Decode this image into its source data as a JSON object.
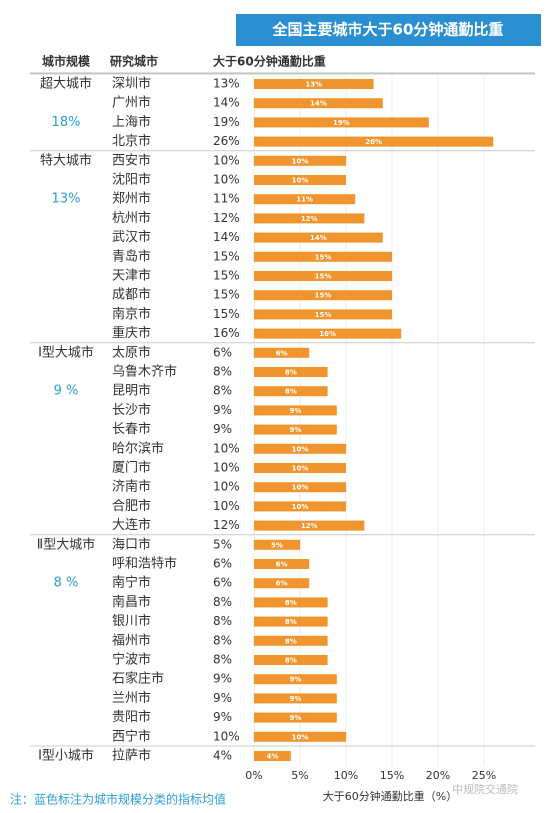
{
  "chart_data": {
    "type": "bar",
    "title": "全国主要城市大于60分钟通勤比重",
    "column_headers": [
      "城市规模",
      "研究城市",
      "大于60分钟通勤比重"
    ],
    "color": "#f0952e",
    "xlim": [
      0,
      30
    ],
    "xticks": [
      {
        "value": 0,
        "label": "0%"
      },
      {
        "value": 5,
        "label": "5%"
      },
      {
        "value": 10,
        "label": "10%"
      },
      {
        "value": 15,
        "label": "15%"
      },
      {
        "value": 20,
        "label": "20%"
      },
      {
        "value": 25,
        "label": "25%"
      }
    ],
    "xlabel": "大于60分钟通勤比重（%）",
    "groups": [
      {
        "name": "超大城市",
        "average": "18%",
        "categories": [
          "深圳市",
          "广州市",
          "上海市",
          "北京市"
        ],
        "values": [
          13,
          14,
          19,
          26
        ],
        "value_labels": [
          "13%",
          "14%",
          "19%",
          "26%"
        ]
      },
      {
        "name": "特大城市",
        "average": "13%",
        "categories": [
          "西安市",
          "沈阳市",
          "郑州市",
          "杭州市",
          "武汉市",
          "青岛市",
          "天津市",
          "成都市",
          "南京市",
          "重庆市"
        ],
        "values": [
          10,
          10,
          11,
          12,
          14,
          15,
          15,
          15,
          15,
          16
        ],
        "value_labels": [
          "10%",
          "10%",
          "11%",
          "12%",
          "14%",
          "15%",
          "15%",
          "15%",
          "15%",
          "16%"
        ]
      },
      {
        "name": "Ⅰ型大城市",
        "average": "9 %",
        "categories": [
          "太原市",
          "乌鲁木齐市",
          "昆明市",
          "长沙市",
          "长春市",
          "哈尔滨市",
          "厦门市",
          "济南市",
          "合肥市",
          "大连市"
        ],
        "values": [
          6,
          8,
          8,
          9,
          9,
          10,
          10,
          10,
          10,
          12
        ],
        "value_labels": [
          "6%",
          "8%",
          "8%",
          "9%",
          "9%",
          "10%",
          "10%",
          "10%",
          "10%",
          "12%"
        ]
      },
      {
        "name": "Ⅱ型大城市",
        "average": "8 %",
        "categories": [
          "海口市",
          "呼和浩特市",
          "南宁市",
          "南昌市",
          "银川市",
          "福州市",
          "宁波市",
          "石家庄市",
          "兰州市",
          "贵阳市",
          "西宁市"
        ],
        "values": [
          5,
          6,
          6,
          8,
          8,
          8,
          8,
          9,
          9,
          9,
          10
        ],
        "value_labels": [
          "5%",
          "6%",
          "6%",
          "8%",
          "8%",
          "8%",
          "8%",
          "9%",
          "9%",
          "9%",
          "10%"
        ]
      },
      {
        "name": "Ⅰ型小城市",
        "categories": [
          "拉萨市"
        ],
        "values": [
          4
        ],
        "value_labels": [
          "4%"
        ]
      }
    ],
    "note": "注：蓝色标注为城市规模分类的指标均值",
    "watermark": "中规院交通院"
  }
}
